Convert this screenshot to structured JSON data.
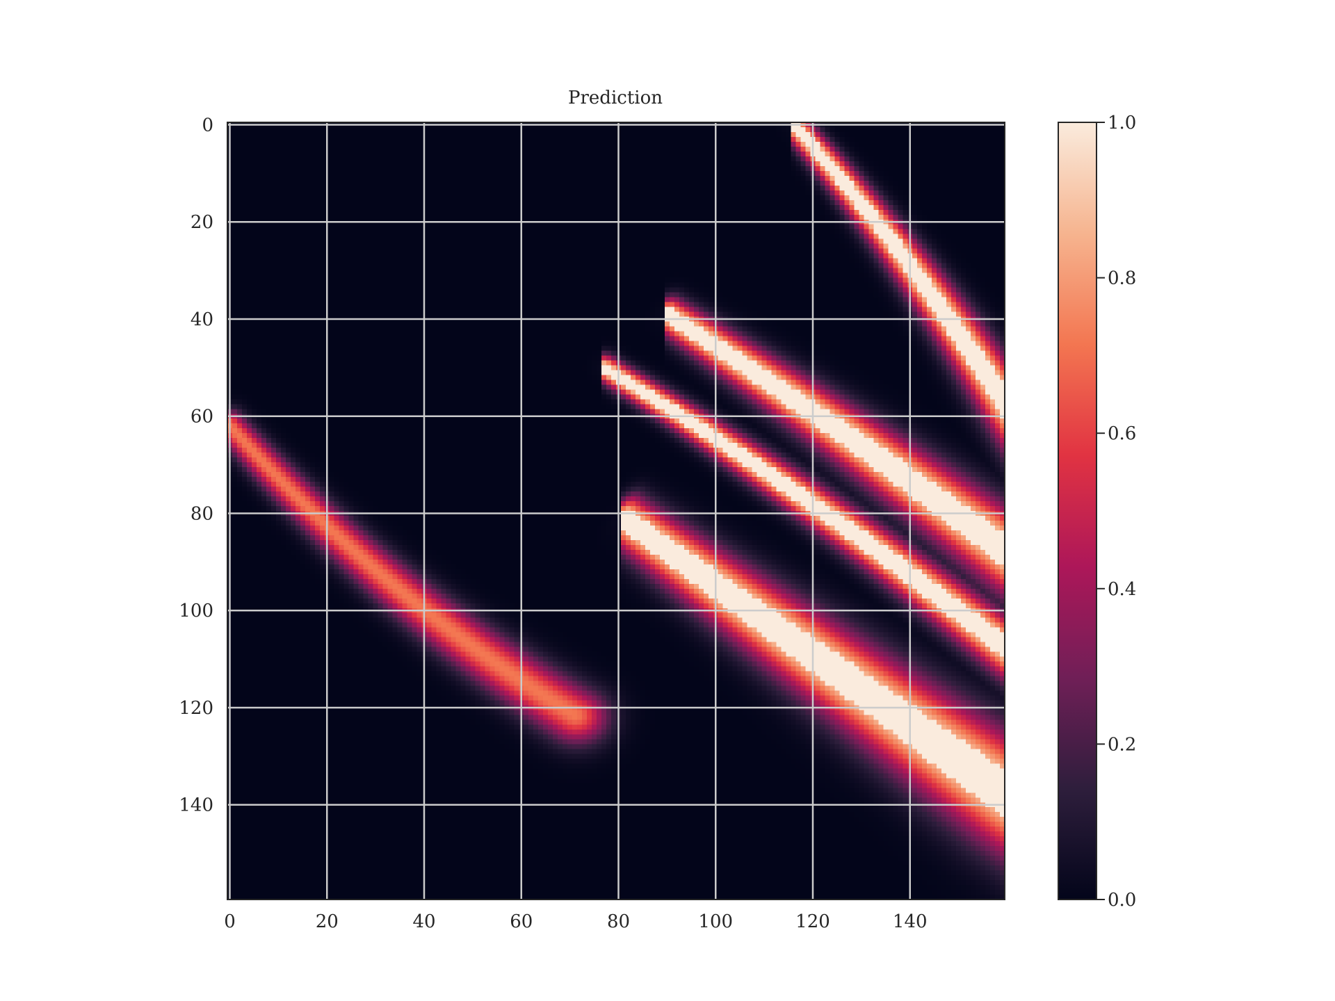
{
  "chart_data": {
    "type": "heatmap",
    "title": "Prediction",
    "xlabel": "",
    "ylabel": "",
    "grid": true,
    "grid_color": "#cccccc",
    "colormap": "rocket",
    "colormap_stops": [
      "#03051a",
      "#2e1e3c",
      "#701f57",
      "#ad1759",
      "#e13342",
      "#f37651",
      "#f6b48f",
      "#faebdd"
    ],
    "image_size": [
      160,
      160
    ],
    "x_ticks": [
      0,
      20,
      40,
      60,
      80,
      100,
      120,
      140
    ],
    "y_ticks": [
      0,
      20,
      40,
      60,
      80,
      100,
      120,
      140
    ],
    "xlim": [
      -0.5,
      159.5
    ],
    "ylim": [
      159.5,
      -0.5
    ],
    "colorbar": {
      "min": 0.0,
      "max": 1.0,
      "ticks": [
        "0.0",
        "0.2",
        "0.4",
        "0.6",
        "0.8",
        "1.0"
      ]
    },
    "features": [
      {
        "name": "arc-top-right",
        "start": [
          116,
          0
        ],
        "end": [
          160,
          58
        ],
        "curvature": 0.06,
        "width": 5,
        "peak": 1.0,
        "start_clip": 116
      },
      {
        "name": "arc-upper",
        "start": [
          90,
          39
        ],
        "end": [
          160,
          88
        ],
        "curvature": 0.02,
        "width": 7,
        "peak": 1.0,
        "start_clip": 90
      },
      {
        "name": "arc-middle",
        "start": [
          77,
          50
        ],
        "end": [
          160,
          108
        ],
        "curvature": 0.03,
        "width": 5,
        "peak": 1.0,
        "start_clip": 77
      },
      {
        "name": "arc-lower-wide",
        "start": [
          81,
          81
        ],
        "end": [
          160,
          138
        ],
        "curvature": 0.0,
        "width": 10,
        "peak": 1.0,
        "start_clip": 81
      },
      {
        "name": "arc-left-band",
        "start": [
          0,
          62
        ],
        "end": [
          82,
          128
        ],
        "curvature": -0.08,
        "width": 6,
        "peak": 0.72
      }
    ]
  }
}
